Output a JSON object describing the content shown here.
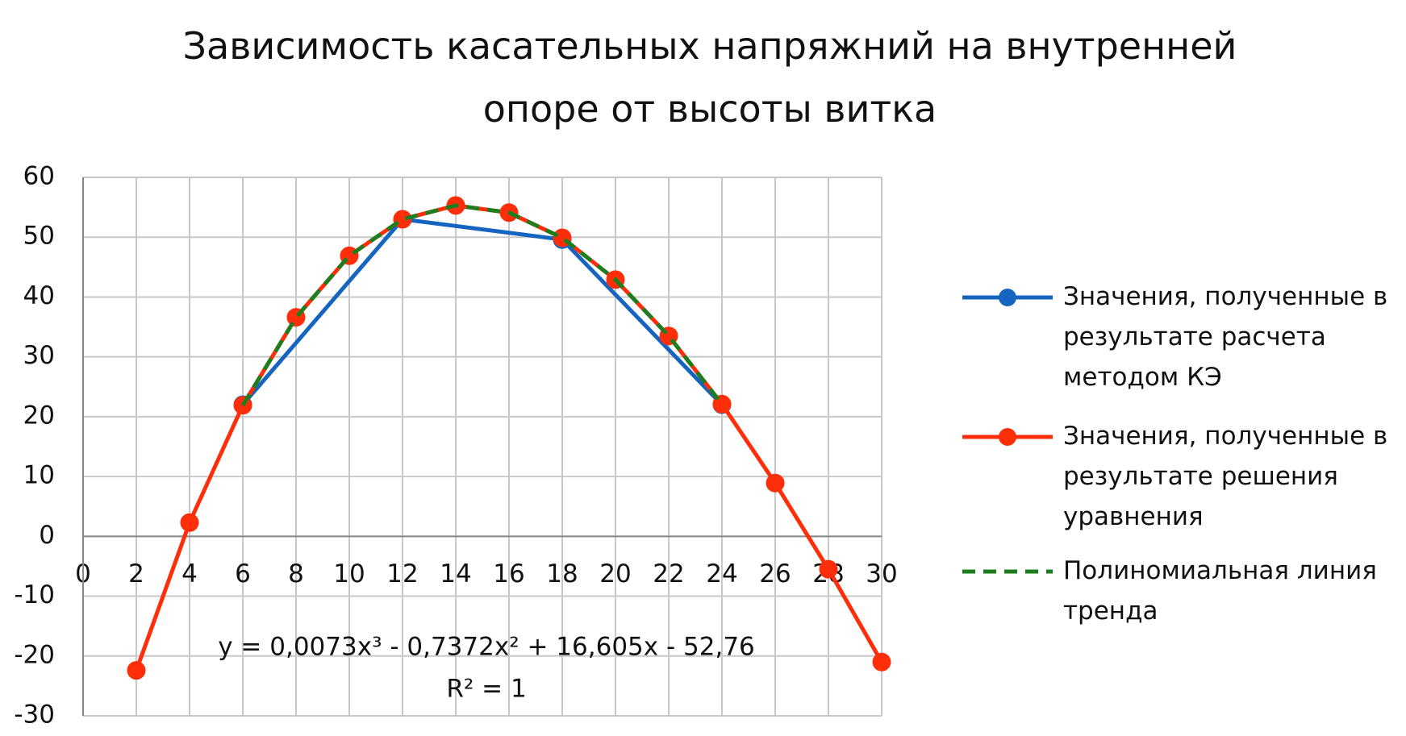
{
  "chart_data": {
    "type": "line",
    "title": "Зависимость касательных напряжний на внутренней опоре от высоты витка",
    "xlim": [
      0,
      30
    ],
    "xticks": [
      0,
      2,
      4,
      6,
      8,
      10,
      12,
      14,
      16,
      18,
      20,
      22,
      24,
      26,
      28,
      30
    ],
    "ylim": [
      -30,
      60
    ],
    "yticks": [
      -30,
      -20,
      -10,
      0,
      10,
      20,
      30,
      40,
      50,
      60
    ],
    "grid": true,
    "legend": "right",
    "series": [
      {
        "name": "Значения, полученные в результате расчета методом КЭ",
        "color": "#1565c0",
        "line_style": "solid",
        "marker": true,
        "x": [
          6,
          12,
          18,
          24
        ],
        "values": [
          22,
          53,
          49.6,
          22
        ]
      },
      {
        "name": "Значения, полученные в результате решения уравнения",
        "color": "#ff2e0a",
        "line_style": "solid",
        "marker": true,
        "x": [
          2,
          4,
          6,
          8,
          10,
          12,
          14,
          16,
          18,
          20,
          22,
          24,
          26,
          28,
          30
        ],
        "values": [
          -22.4,
          2.3,
          21.9,
          36.6,
          46.9,
          53,
          55.3,
          54.1,
          49.9,
          42.9,
          33.5,
          22.1,
          8.9,
          -5.5,
          -21
        ]
      },
      {
        "name": "Полиномиальная линия тренда",
        "color": "#1e7d1e",
        "line_style": "dashed",
        "marker": false,
        "x": [
          6,
          8,
          10,
          12,
          14,
          16,
          18,
          20,
          22,
          24
        ],
        "values": [
          21.9,
          36.6,
          46.9,
          53,
          55.3,
          54.1,
          49.9,
          42.9,
          33.5,
          22.1
        ]
      }
    ],
    "annotations": [
      "y = 0,0073x³ - 0,7372x² + 16,605x - 52,76",
      "R² = 1"
    ]
  }
}
